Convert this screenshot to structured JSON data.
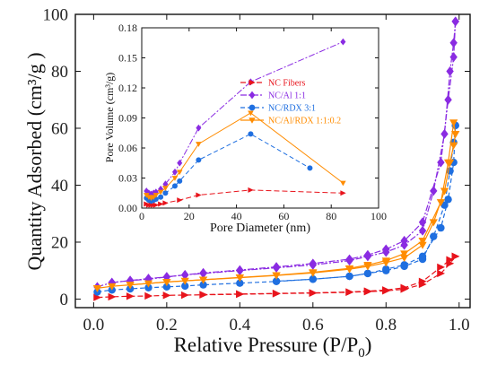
{
  "chart_data": [
    {
      "type": "scatter",
      "role": "main",
      "xlabel": "Relative Pressure (P/P",
      "xlabel_sub": "0",
      "xlabel_close": ")",
      "ylabel": "Quantity Adsorbed (cm³/g )",
      "xlim": [
        -0.05,
        1.03
      ],
      "ylim": [
        -3,
        100
      ],
      "xticks": [
        "0.0",
        "0.2",
        "0.4",
        "0.6",
        "0.8",
        "1.0"
      ],
      "yticks": [
        "0",
        "20",
        "40",
        "60",
        "80",
        "100"
      ],
      "series": [
        {
          "color": "#e8141c",
          "marker": "triangle-right",
          "dash": "6,3",
          "adsorption": [
            [
              0.01,
              0.6
            ],
            [
              0.05,
              0.8
            ],
            [
              0.1,
              1.0
            ],
            [
              0.15,
              1.1
            ],
            [
              0.2,
              1.3
            ],
            [
              0.25,
              1.4
            ],
            [
              0.3,
              1.5
            ],
            [
              0.4,
              1.7
            ],
            [
              0.5,
              1.9
            ],
            [
              0.6,
              2.1
            ],
            [
              0.7,
              2.4
            ],
            [
              0.75,
              2.6
            ],
            [
              0.8,
              2.9
            ],
            [
              0.85,
              3.5
            ],
            [
              0.9,
              5.2
            ],
            [
              0.95,
              9.0
            ],
            [
              0.975,
              12.5
            ],
            [
              0.99,
              15.0
            ]
          ],
          "desorption": [
            [
              0.99,
              15.0
            ],
            [
              0.975,
              13.8
            ],
            [
              0.95,
              11.2
            ],
            [
              0.9,
              6.2
            ],
            [
              0.85,
              4.0
            ],
            [
              0.8,
              3.2
            ],
            [
              0.75,
              2.8
            ],
            [
              0.7,
              2.5
            ],
            [
              0.6,
              2.2
            ],
            [
              0.5,
              2.0
            ],
            [
              0.4,
              1.8
            ],
            [
              0.3,
              1.6
            ]
          ]
        },
        {
          "color": "#8a2be2",
          "marker": "diamond",
          "dash": "7,2,2,2",
          "adsorption": [
            [
              0.01,
              4.3
            ],
            [
              0.05,
              5.8
            ],
            [
              0.1,
              6.5
            ],
            [
              0.15,
              7.2
            ],
            [
              0.2,
              7.8
            ],
            [
              0.25,
              8.5
            ],
            [
              0.3,
              9.2
            ],
            [
              0.4,
              10.2
            ],
            [
              0.5,
              11.3
            ],
            [
              0.6,
              12.5
            ],
            [
              0.7,
              14.0
            ],
            [
              0.75,
              15.5
            ],
            [
              0.8,
              17.5
            ],
            [
              0.85,
              20.5
            ],
            [
              0.9,
              27.0
            ],
            [
              0.95,
              48.0
            ],
            [
              0.97,
              70.0
            ],
            [
              0.985,
              85.0
            ],
            [
              0.99,
              97.5
            ]
          ],
          "desorption": [
            [
              0.99,
              97.5
            ],
            [
              0.985,
              90.0
            ],
            [
              0.975,
              80.0
            ],
            [
              0.96,
              58.0
            ],
            [
              0.93,
              38.0
            ],
            [
              0.9,
              24.0
            ],
            [
              0.85,
              19.0
            ],
            [
              0.8,
              16.5
            ],
            [
              0.75,
              15.0
            ],
            [
              0.7,
              13.5
            ],
            [
              0.6,
              12.0
            ],
            [
              0.5,
              11.0
            ],
            [
              0.4,
              10.0
            ],
            [
              0.3,
              9.0
            ],
            [
              0.25,
              8.5
            ],
            [
              0.2,
              7.8
            ],
            [
              0.15,
              7.0
            ],
            [
              0.1,
              6.5
            ],
            [
              0.05,
              5.8
            ]
          ]
        },
        {
          "color": "#1f6fe0",
          "marker": "circle",
          "dash": "5,3",
          "adsorption": [
            [
              0.01,
              2.5
            ],
            [
              0.05,
              3.2
            ],
            [
              0.1,
              3.6
            ],
            [
              0.15,
              4.0
            ],
            [
              0.2,
              4.3
            ],
            [
              0.25,
              4.6
            ],
            [
              0.3,
              5.0
            ],
            [
              0.4,
              5.6
            ],
            [
              0.5,
              6.2
            ],
            [
              0.6,
              7.0
            ],
            [
              0.7,
              8.0
            ],
            [
              0.75,
              9.0
            ],
            [
              0.8,
              10.5
            ],
            [
              0.85,
              12.0
            ],
            [
              0.9,
              15.0
            ],
            [
              0.95,
              25.0
            ],
            [
              0.97,
              35.0
            ],
            [
              0.985,
              48.0
            ],
            [
              0.99,
              61.0
            ]
          ],
          "desorption": [
            [
              0.99,
              61.0
            ],
            [
              0.985,
              55.0
            ],
            [
              0.975,
              45.0
            ],
            [
              0.96,
              33.0
            ],
            [
              0.93,
              22.0
            ],
            [
              0.9,
              14.0
            ],
            [
              0.85,
              11.5
            ],
            [
              0.8,
              10.0
            ],
            [
              0.75,
              9.0
            ],
            [
              0.7,
              8.0
            ],
            [
              0.6,
              7.0
            ],
            [
              0.5,
              6.3
            ]
          ]
        },
        {
          "color": "#ff8c00",
          "marker": "triangle-down",
          "dash": "",
          "adsorption": [
            [
              0.01,
              3.8
            ],
            [
              0.05,
              4.5
            ],
            [
              0.1,
              5.0
            ],
            [
              0.15,
              5.5
            ],
            [
              0.2,
              6.0
            ],
            [
              0.25,
              6.4
            ],
            [
              0.3,
              6.8
            ],
            [
              0.4,
              7.6
            ],
            [
              0.5,
              8.4
            ],
            [
              0.6,
              9.4
            ],
            [
              0.7,
              10.8
            ],
            [
              0.75,
              12.0
            ],
            [
              0.8,
              13.5
            ],
            [
              0.85,
              16.0
            ],
            [
              0.9,
              20.5
            ],
            [
              0.95,
              34.0
            ],
            [
              0.97,
              48.0
            ],
            [
              0.985,
              62.0
            ],
            [
              0.99,
              58.0
            ]
          ],
          "desorption": [
            [
              0.99,
              58.0
            ],
            [
              0.985,
              54.0
            ],
            [
              0.975,
              48.0
            ],
            [
              0.96,
              38.0
            ],
            [
              0.93,
              27.0
            ],
            [
              0.9,
              19.0
            ],
            [
              0.85,
              14.5
            ],
            [
              0.8,
              12.8
            ],
            [
              0.75,
              11.5
            ],
            [
              0.7,
              10.5
            ],
            [
              0.6,
              9.2
            ],
            [
              0.5,
              8.3
            ],
            [
              0.4,
              7.5
            ],
            [
              0.3,
              6.8
            ],
            [
              0.2,
              6.0
            ],
            [
              0.1,
              5.0
            ]
          ]
        }
      ]
    },
    {
      "type": "line",
      "role": "inset",
      "xlabel": "Pore Diameter (nm)",
      "ylabel": "Pore Volume (cm³/g)",
      "xlim": [
        0,
        100
      ],
      "ylim": [
        0,
        0.18
      ],
      "xticks": [
        "0",
        "20",
        "40",
        "60",
        "80",
        "100"
      ],
      "yticks": [
        "0.00",
        "0.03",
        "0.06",
        "0.09",
        "0.12",
        "0.15",
        "0.18"
      ],
      "legend_position": "top-right",
      "series": [
        {
          "name": "NC Fibers",
          "color": "#e8141c",
          "marker": "triangle-right",
          "dash": "6,3",
          "points": [
            [
              2,
              0.004
            ],
            [
              3,
              0.003
            ],
            [
              4,
              0.003
            ],
            [
              5,
              0.003
            ],
            [
              6,
              0.003
            ],
            [
              8,
              0.004
            ],
            [
              10,
              0.005
            ],
            [
              16,
              0.008
            ],
            [
              24,
              0.013
            ],
            [
              46,
              0.018
            ],
            [
              85,
              0.015
            ]
          ]
        },
        {
          "name": "NC/Al 1:1",
          "color": "#8a2be2",
          "marker": "diamond",
          "dash": "7,2,2,2",
          "points": [
            [
              2,
              0.017
            ],
            [
              3,
              0.015
            ],
            [
              4,
              0.014
            ],
            [
              5,
              0.015
            ],
            [
              6,
              0.016
            ],
            [
              8,
              0.019
            ],
            [
              10,
              0.024
            ],
            [
              14,
              0.036
            ],
            [
              16,
              0.045
            ],
            [
              24,
              0.08
            ],
            [
              46,
              0.126
            ],
            [
              85,
              0.166
            ]
          ]
        },
        {
          "name": "NC/RDX 3:1",
          "color": "#1f6fe0",
          "marker": "circle",
          "dash": "5,3",
          "points": [
            [
              2,
              0.01
            ],
            [
              3,
              0.008
            ],
            [
              4,
              0.007
            ],
            [
              5,
              0.008
            ],
            [
              6,
              0.009
            ],
            [
              8,
              0.011
            ],
            [
              10,
              0.015
            ],
            [
              14,
              0.022
            ],
            [
              16,
              0.027
            ],
            [
              24,
              0.048
            ],
            [
              46,
              0.074
            ],
            [
              71,
              0.04
            ]
          ]
        },
        {
          "name": "NC/Al/RDX 1:1:0.2",
          "color": "#ff8c00",
          "marker": "triangle-down",
          "dash": "",
          "points": [
            [
              2,
              0.013
            ],
            [
              3,
              0.011
            ],
            [
              4,
              0.01
            ],
            [
              5,
              0.011
            ],
            [
              6,
              0.013
            ],
            [
              8,
              0.016
            ],
            [
              10,
              0.02
            ],
            [
              14,
              0.03
            ],
            [
              16,
              0.036
            ],
            [
              24,
              0.064
            ],
            [
              46,
              0.095
            ],
            [
              85,
              0.025
            ]
          ]
        }
      ]
    }
  ]
}
